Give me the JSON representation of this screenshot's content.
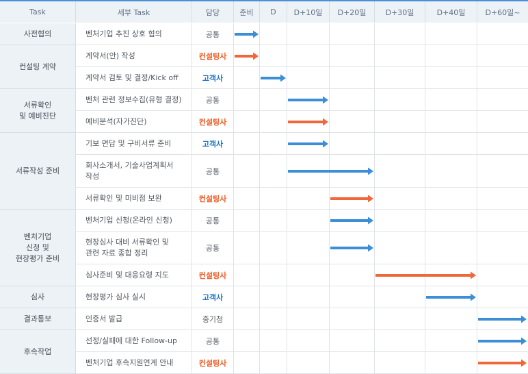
{
  "chart_data": {
    "type": "table",
    "headers": {
      "task": "Task",
      "subtask": "세부 Task",
      "owner": "담당",
      "periods": [
        "준비",
        "D",
        "D+10일",
        "D+20일",
        "D+30일",
        "D+40일",
        "D+60일~"
      ]
    },
    "groups": [
      {
        "label": "사전협의",
        "rows": [
          0
        ]
      },
      {
        "label": "컨설팅 계약",
        "rows": [
          1,
          2
        ]
      },
      {
        "label": "서류확인\n및 예비진단",
        "rows": [
          3,
          4
        ]
      },
      {
        "label": "서류작성 준비",
        "rows": [
          5,
          6,
          7
        ]
      },
      {
        "label": "벤처기업\n신청 및\n현장평가 준비",
        "rows": [
          8,
          9,
          10
        ]
      },
      {
        "label": "심사",
        "rows": [
          11
        ]
      },
      {
        "label": "결과통보",
        "rows": [
          12
        ]
      },
      {
        "label": "후속작업",
        "rows": [
          13,
          14
        ]
      }
    ],
    "rows": [
      {
        "subtask": "벤처기업 추진 상호 협의",
        "owner": "공통",
        "owner_type": "common",
        "start": 0,
        "end": 1
      },
      {
        "subtask": "계약서(안) 작성",
        "owner": "컨설팅사",
        "owner_type": "consultant",
        "start": 0,
        "end": 1
      },
      {
        "subtask": "계약서 검토 및 결정/Kick off",
        "owner": "고객사",
        "owner_type": "client",
        "start": 1,
        "end": 2
      },
      {
        "subtask": "벤처 관련 정보수집(유형 결정)",
        "owner": "공통",
        "owner_type": "common",
        "start": 2,
        "end": 3
      },
      {
        "subtask": "예비분석(자가진단)",
        "owner": "컨설팅사",
        "owner_type": "consultant",
        "start": 2,
        "end": 3
      },
      {
        "subtask": "기보 면담 및 구비서류 준비",
        "owner": "고객사",
        "owner_type": "client",
        "start": 2,
        "end": 3
      },
      {
        "subtask": "회사소개서, 기술사업계획서\n작성",
        "owner": "공통",
        "owner_type": "common",
        "start": 2,
        "end": 4
      },
      {
        "subtask": "서류확인 및 미비점 보완",
        "owner": "컨설팅사",
        "owner_type": "consultant",
        "start": 3,
        "end": 4
      },
      {
        "subtask": "벤처기업 신청(온라인 신청)",
        "owner": "공통",
        "owner_type": "common",
        "start": 3,
        "end": 4
      },
      {
        "subtask": "현장심사 대비 서류확인 및\n관련 자료 종합 정리",
        "owner": "공통",
        "owner_type": "common",
        "start": 3,
        "end": 4
      },
      {
        "subtask": "심사준비 및 대응요령 지도",
        "owner": "컨설팅사",
        "owner_type": "consultant",
        "start": 4,
        "end": 6
      },
      {
        "subtask": "현장평가 심사 실시",
        "owner": "고객사",
        "owner_type": "client",
        "start": 5,
        "end": 6
      },
      {
        "subtask": "인증서 발급",
        "owner": "중기청",
        "owner_type": "other",
        "start": 6,
        "end": 7
      },
      {
        "subtask": "선정/실패에 대한 Follow-up",
        "owner": "공통",
        "owner_type": "common",
        "start": 6,
        "end": 7
      },
      {
        "subtask": "벤처기업 후속지원연계 안내",
        "owner": "컨설팅사",
        "owner_type": "consultant",
        "start": 6,
        "end": 7
      }
    ],
    "colors": {
      "common": "#3c8fd6",
      "client": "#3c8fd6",
      "other": "#3c8fd6",
      "consultant": "#f0673a",
      "header_bg": "#edf2f7",
      "owner_consultant_text": "#f05a23",
      "owner_client_text": "#1e76c2"
    }
  }
}
